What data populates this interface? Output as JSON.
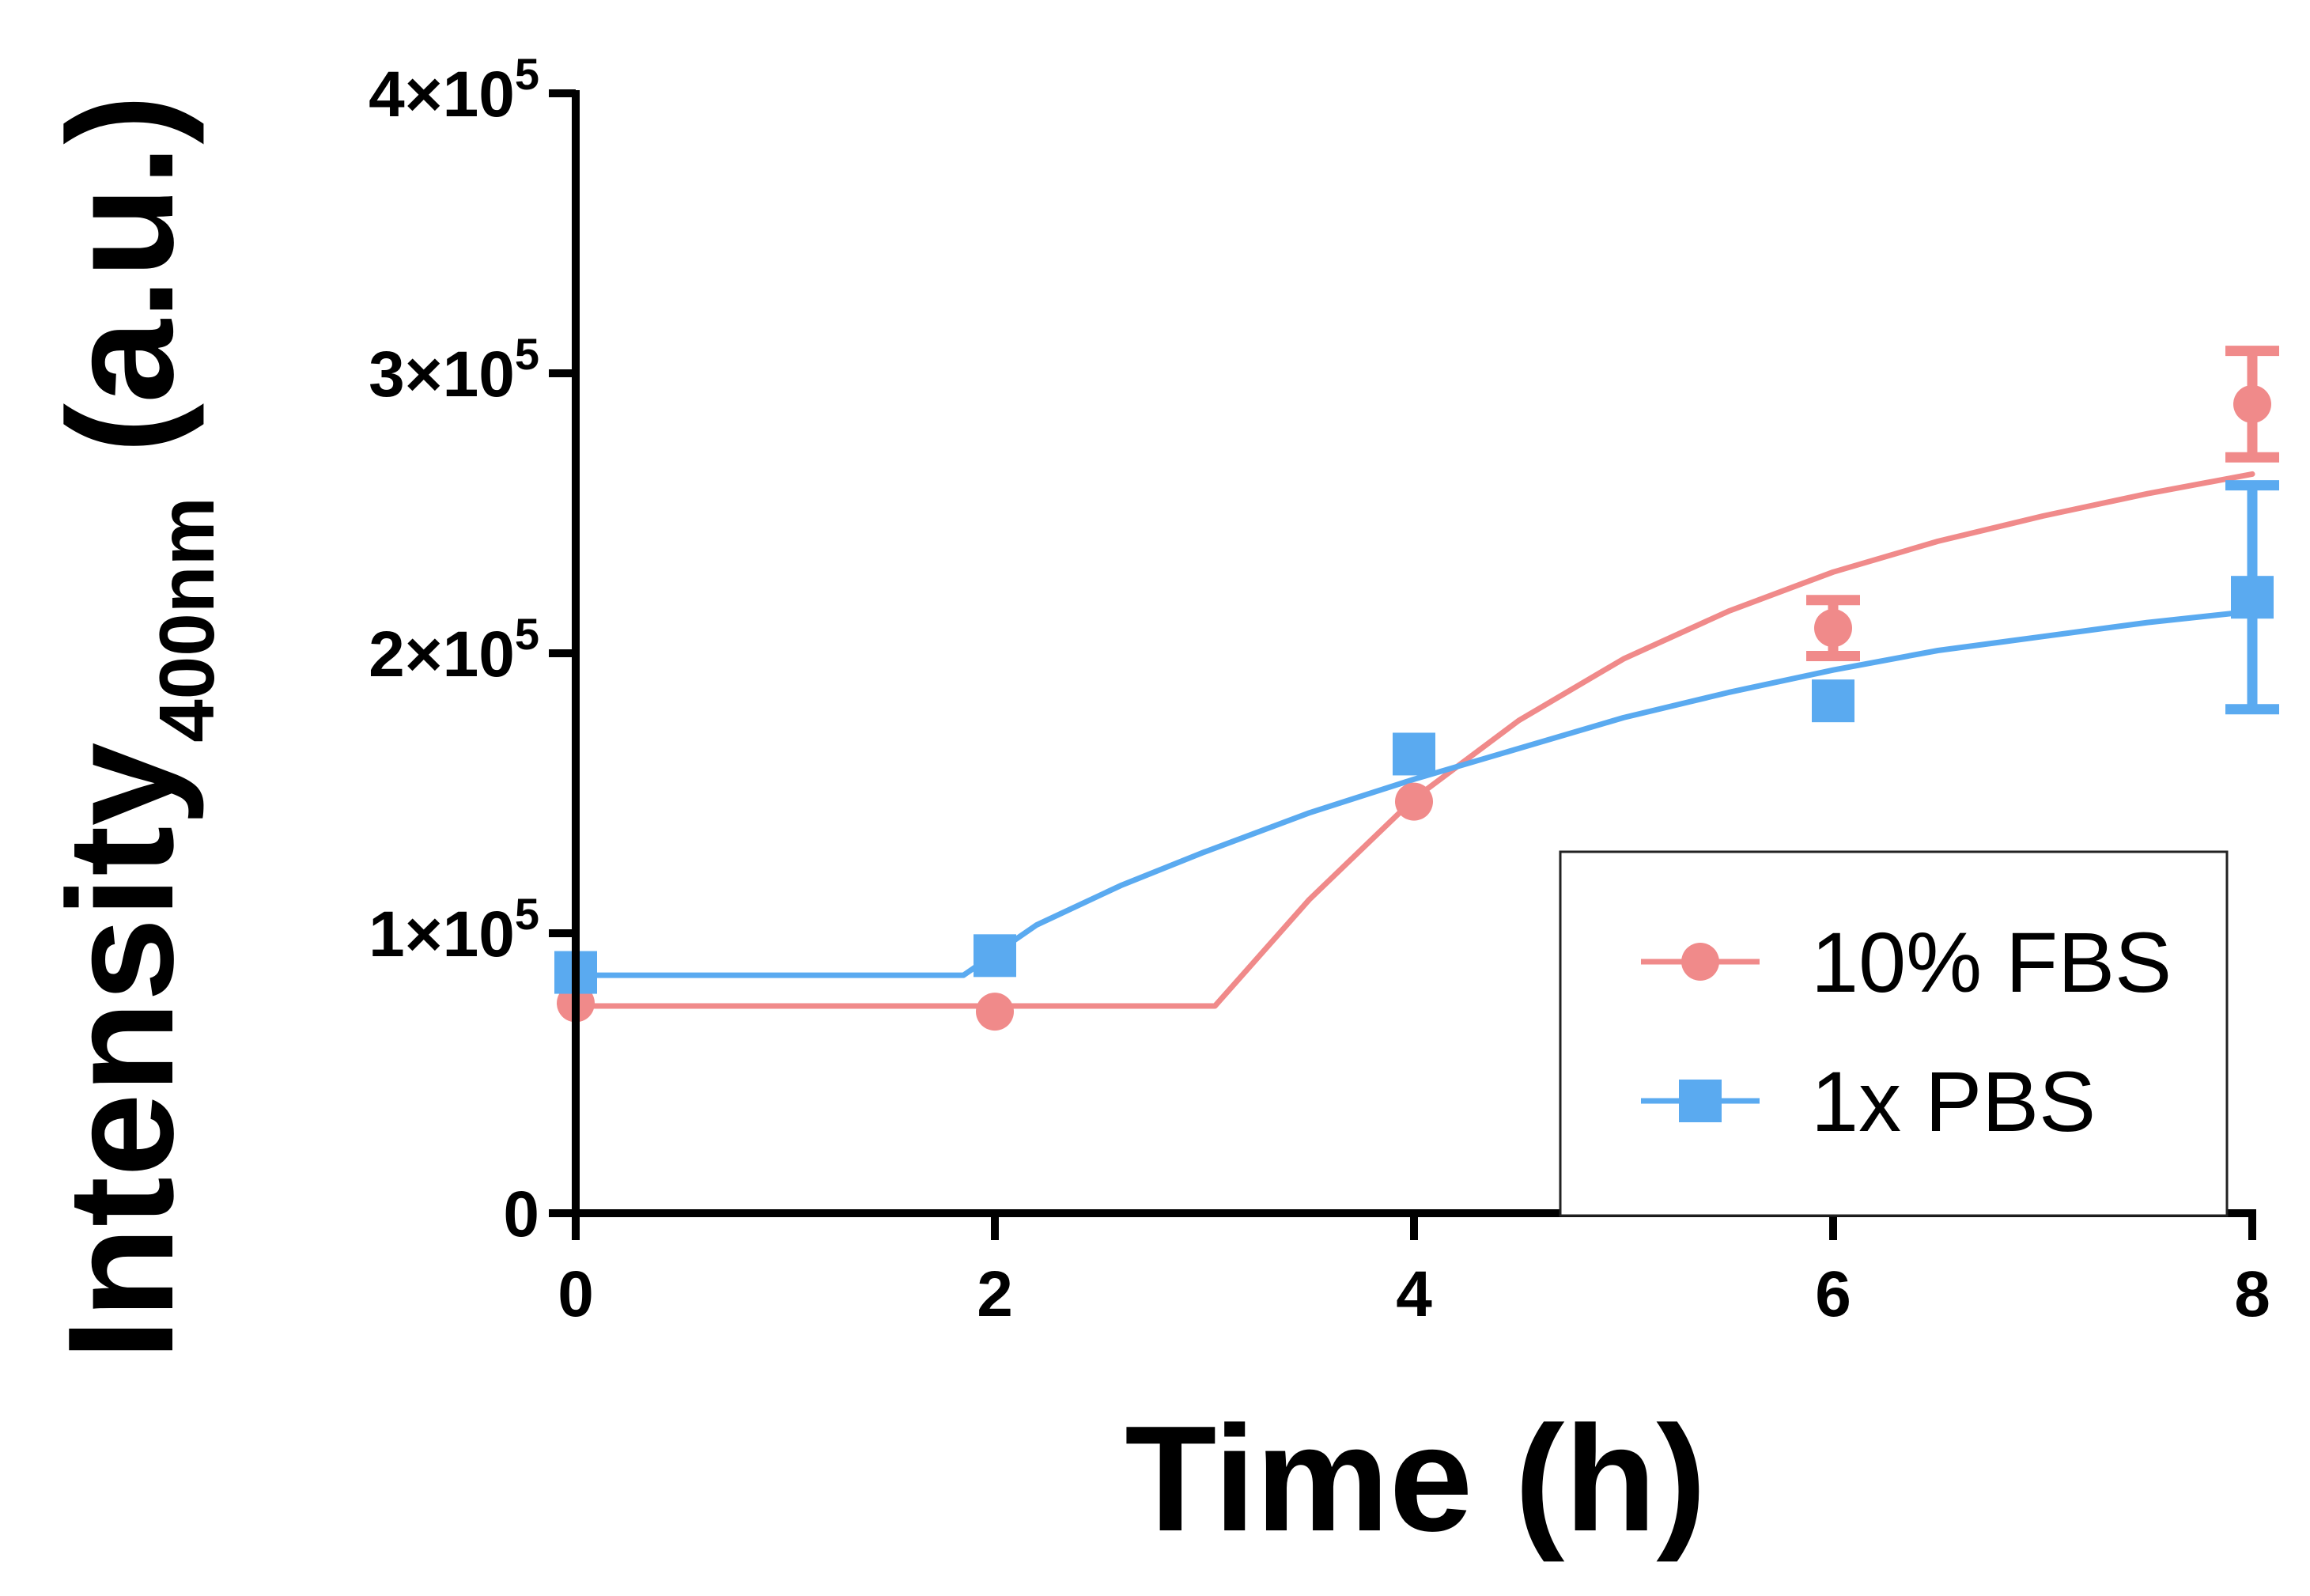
{
  "chart_data": {
    "type": "line",
    "title": "",
    "xlabel": "Time (h)",
    "ylabel": {
      "main": "Intensity",
      "subscript": "400nm",
      "unit": "(a.u.)"
    },
    "xlim": [
      0,
      8
    ],
    "ylim": [
      0,
      400000
    ],
    "x_ticks": [
      {
        "value": 0,
        "label": "0"
      },
      {
        "value": 2,
        "label": "2"
      },
      {
        "value": 4,
        "label": "4"
      },
      {
        "value": 6,
        "label": "6"
      },
      {
        "value": 8,
        "label": "8"
      }
    ],
    "y_ticks": [
      {
        "value": 0,
        "label": "0",
        "mantissa": "",
        "exponent": ""
      },
      {
        "value": 100000,
        "label": "1×10",
        "mantissa": "1×10",
        "exponent": "5"
      },
      {
        "value": 200000,
        "label": "2×10",
        "mantissa": "2×10",
        "exponent": "5"
      },
      {
        "value": 300000,
        "label": "3×10",
        "mantissa": "3×10",
        "exponent": "5"
      },
      {
        "value": 400000,
        "label": "4×10",
        "mantissa": "4×10",
        "exponent": "5"
      }
    ],
    "grid": false,
    "legend": {
      "position": "bottom-right",
      "entries": [
        "10% FBS",
        "1x PBS"
      ]
    },
    "series": [
      {
        "name": "10% FBS",
        "marker": "circle",
        "color": "#F08A8A",
        "x": [
          0,
          2,
          4,
          6,
          8
        ],
        "y": [
          75000,
          72000,
          147000,
          209000,
          289000
        ],
        "error": [
          0,
          0,
          0,
          10000,
          19000
        ],
        "fit": [
          [
            0,
            74000
          ],
          [
            3.05,
            74000
          ],
          [
            3.5,
            112000
          ],
          [
            4,
            148000
          ],
          [
            4.5,
            176000
          ],
          [
            5,
            198000
          ],
          [
            5.5,
            215000
          ],
          [
            6,
            229000
          ],
          [
            6.5,
            240000
          ],
          [
            7,
            249000
          ],
          [
            7.5,
            257000
          ],
          [
            8,
            264000
          ]
        ]
      },
      {
        "name": "1x PBS",
        "marker": "square",
        "color": "#5AAAF0",
        "x": [
          0,
          2,
          4,
          6,
          8
        ],
        "y": [
          86000,
          92000,
          164000,
          183000,
          220000
        ],
        "error": [
          0,
          0,
          0,
          0,
          40000
        ],
        "fit": [
          [
            0,
            85000
          ],
          [
            1.85,
            85000
          ],
          [
            2.2,
            103000
          ],
          [
            2.6,
            117000
          ],
          [
            3,
            129000
          ],
          [
            3.5,
            143000
          ],
          [
            4,
            155000
          ],
          [
            4.5,
            166000
          ],
          [
            5,
            177000
          ],
          [
            5.5,
            186000
          ],
          [
            6,
            194000
          ],
          [
            6.5,
            201000
          ],
          [
            7,
            206000
          ],
          [
            7.5,
            211000
          ],
          [
            8,
            215000
          ]
        ]
      }
    ]
  }
}
